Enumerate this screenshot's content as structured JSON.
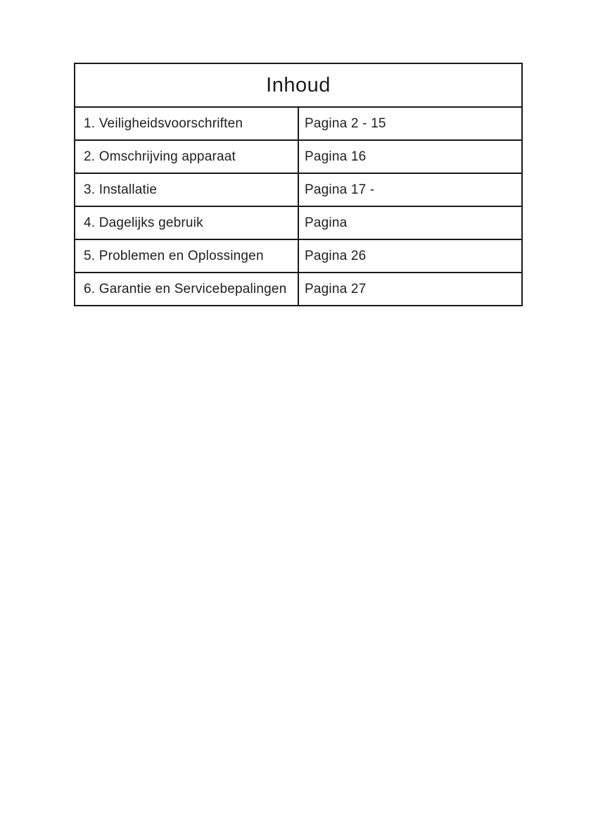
{
  "toc": {
    "title": "Inhoud",
    "rows": [
      {
        "item": "1. Veiligheidsvoorschriften",
        "page": "Pagina 2 - 15"
      },
      {
        "item": "2. Omschrijving apparaat",
        "page": "Pagina 16"
      },
      {
        "item": "3. Installatie",
        "page": "Pagina 17 -"
      },
      {
        "item": "4. Dagelijks gebruik",
        "page": "Pagina"
      },
      {
        "item": "5. Problemen en Oplossingen",
        "page": "Pagina 26"
      },
      {
        "item": "6. Garantie en Servicebepalingen",
        "page": "Pagina 27"
      }
    ]
  }
}
